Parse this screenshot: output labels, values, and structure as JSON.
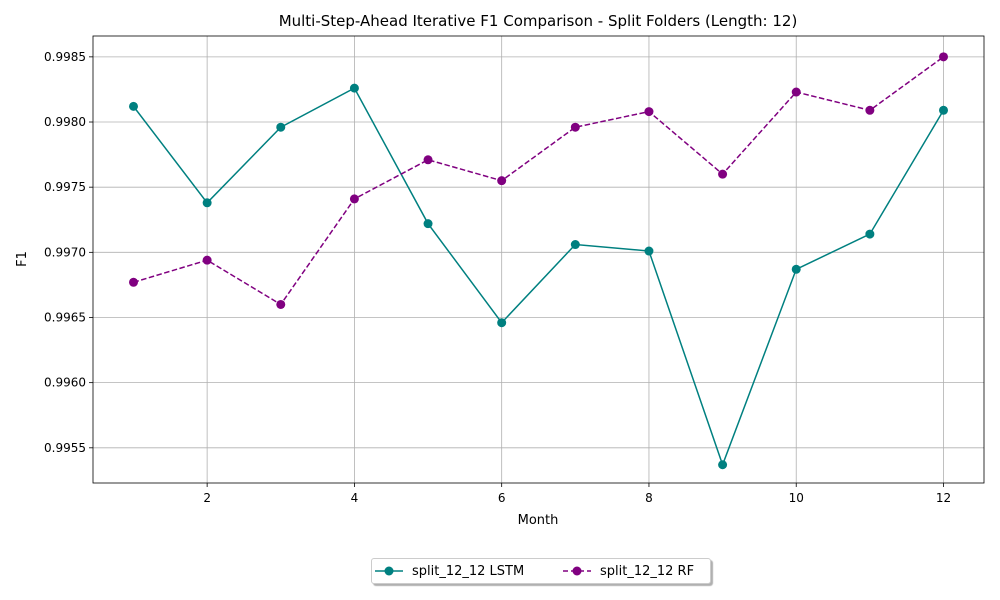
{
  "chart_data": {
    "type": "line",
    "title": "Multi-Step-Ahead Iterative F1 Comparison - Split Folders (Length: 12)",
    "xlabel": "Month",
    "ylabel": "F1",
    "x": [
      1,
      2,
      3,
      4,
      5,
      6,
      7,
      8,
      9,
      10,
      11,
      12
    ],
    "xticks": [
      2,
      4,
      6,
      8,
      10,
      12
    ],
    "xlim": [
      0.45,
      12.55
    ],
    "yticks": [
      0.9955,
      0.996,
      0.9965,
      0.997,
      0.9975,
      0.998,
      0.9985
    ],
    "ytick_labels": [
      "0.9955",
      "0.9960",
      "0.9965",
      "0.9970",
      "0.9975",
      "0.9980",
      "0.9985"
    ],
    "ylim": [
      0.99523,
      0.99866
    ],
    "grid": true,
    "legend_position": "bottom-center",
    "series": [
      {
        "name": "split_12_12 LSTM",
        "color": "#008080",
        "linestyle": "solid",
        "marker": "circle",
        "values": [
          0.99812,
          0.99738,
          0.99796,
          0.99826,
          0.99722,
          0.99646,
          0.99706,
          0.99701,
          0.99537,
          0.99687,
          0.99714,
          0.99809
        ]
      },
      {
        "name": "split_12_12 RF",
        "color": "#800080",
        "linestyle": "dashed",
        "marker": "circle",
        "values": [
          0.99677,
          0.99694,
          0.9966,
          0.99741,
          0.99771,
          0.99755,
          0.99796,
          0.99808,
          0.9976,
          0.99823,
          0.99809,
          0.9985
        ]
      }
    ]
  }
}
